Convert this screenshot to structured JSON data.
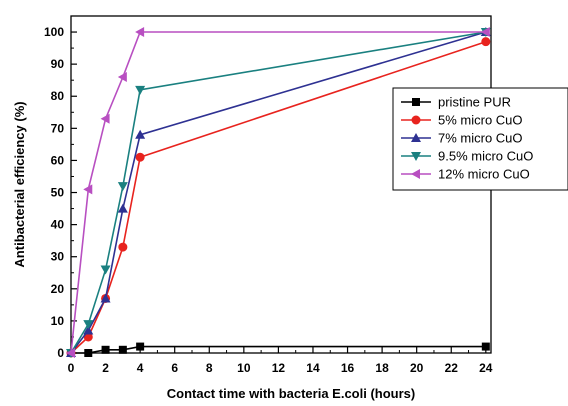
{
  "chart_data": {
    "type": "line",
    "title": "",
    "xlabel": "Contact time with bacteria E.coli (hours)",
    "ylabel": "Antibacterial efficiency (%)",
    "xlim": [
      0,
      24.3
    ],
    "ylim": [
      0,
      105
    ],
    "xticks": [
      0,
      2,
      4,
      6,
      8,
      10,
      12,
      14,
      16,
      18,
      20,
      22,
      24
    ],
    "yticks": [
      0,
      10,
      20,
      30,
      40,
      50,
      60,
      70,
      80,
      90,
      100
    ],
    "grid": false,
    "legend_position": "right",
    "series": [
      {
        "name": "pristine PUR",
        "color": "#000000",
        "marker": "square",
        "x": [
          0,
          1,
          2,
          3,
          4,
          24
        ],
        "y": [
          0,
          0,
          1,
          1,
          2,
          2
        ]
      },
      {
        "name": "5% micro CuO",
        "color": "#e8231e",
        "marker": "circle",
        "x": [
          0,
          1,
          2,
          3,
          4,
          24
        ],
        "y": [
          0,
          5,
          17,
          33,
          61,
          97
        ]
      },
      {
        "name": "7% micro CuO",
        "color": "#2e3192",
        "marker": "triangle-up",
        "x": [
          0,
          1,
          2,
          3,
          4,
          24
        ],
        "y": [
          0,
          7,
          17,
          45,
          68,
          100
        ]
      },
      {
        "name": "9.5% micro CuO",
        "color": "#1a8080",
        "marker": "triangle-down",
        "x": [
          0,
          1,
          2,
          3,
          4,
          24
        ],
        "y": [
          0,
          9,
          26,
          52,
          82,
          100
        ]
      },
      {
        "name": "12% micro CuO",
        "color": "#b84fc1",
        "marker": "triangle-left",
        "x": [
          0,
          1,
          2,
          3,
          4,
          24
        ],
        "y": [
          0,
          51,
          73,
          86,
          100,
          100
        ]
      }
    ]
  }
}
